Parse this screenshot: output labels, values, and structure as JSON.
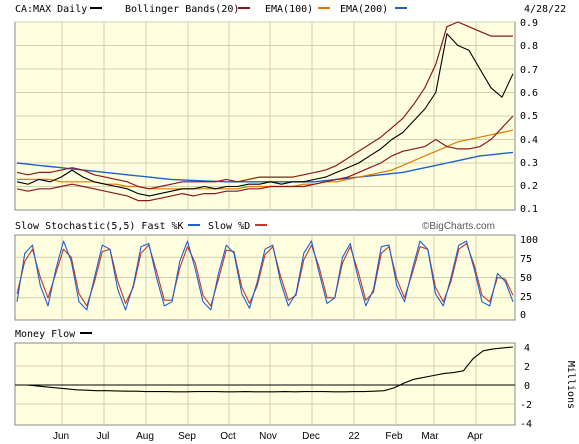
{
  "chart_data": {
    "type": "line",
    "date_label": "4/28/22",
    "credit": "©BigCharts.com",
    "x_tick_labels": [
      "Jun",
      "Jul",
      "Aug",
      "Sep",
      "Oct",
      "Nov",
      "Dec",
      "22",
      "Feb",
      "Mar",
      "Apr"
    ],
    "colors": {
      "background": "#ffffe0",
      "grid": "#cfd0b0",
      "price": "#000000",
      "bollinger": "#8b1a1a",
      "ema100": "#e07b00",
      "ema200": "#1f5fd0",
      "fast_k": "#1f5fd0",
      "slow_d": "#c0392b"
    },
    "panels": [
      {
        "name": "price",
        "legend": [
          {
            "label": "CA:MAX Daily",
            "color": "#000000"
          },
          {
            "label": "Bollinger Bands(20)",
            "color": "#8b1a1a"
          },
          {
            "label": "EMA(100)",
            "color": "#e07b00"
          },
          {
            "label": "EMA(200)",
            "color": "#1f5fd0"
          }
        ],
        "y_ticks": [
          "0.9",
          "0.8",
          "0.7",
          "0.6",
          "0.5",
          "0.4",
          "0.3",
          "0.2",
          "0.1"
        ],
        "ylim": [
          0.1,
          0.9
        ],
        "series": [
          {
            "values": [
              0.22,
              0.21,
              0.23,
              0.22,
              0.24,
              0.27,
              0.24,
              0.22,
              0.21,
              0.2,
              0.19,
              0.17,
              0.16,
              0.17,
              0.18,
              0.19,
              0.19,
              0.2,
              0.19,
              0.2,
              0.2,
              0.21,
              0.21,
              0.22,
              0.21,
              0.22,
              0.22,
              0.23,
              0.24,
              0.26,
              0.28,
              0.3,
              0.33,
              0.36,
              0.4,
              0.43,
              0.48,
              0.53,
              0.6,
              0.85,
              0.8,
              0.78,
              0.7,
              0.62,
              0.58,
              0.68
            ]
          },
          {
            "values": [
              0.26,
              0.25,
              0.26,
              0.26,
              0.27,
              0.28,
              0.27,
              0.25,
              0.24,
              0.23,
              0.22,
              0.2,
              0.19,
              0.2,
              0.21,
              0.22,
              0.22,
              0.22,
              0.22,
              0.23,
              0.22,
              0.23,
              0.24,
              0.24,
              0.24,
              0.24,
              0.25,
              0.26,
              0.27,
              0.29,
              0.32,
              0.35,
              0.38,
              0.41,
              0.45,
              0.49,
              0.55,
              0.62,
              0.72,
              0.88,
              0.9,
              0.88,
              0.86,
              0.84,
              0.84,
              0.84
            ]
          },
          {
            "values": [
              0.19,
              0.18,
              0.19,
              0.19,
              0.2,
              0.21,
              0.2,
              0.19,
              0.18,
              0.17,
              0.16,
              0.14,
              0.14,
              0.15,
              0.16,
              0.17,
              0.16,
              0.17,
              0.17,
              0.18,
              0.18,
              0.19,
              0.19,
              0.2,
              0.2,
              0.2,
              0.2,
              0.21,
              0.22,
              0.23,
              0.24,
              0.26,
              0.28,
              0.3,
              0.33,
              0.35,
              0.36,
              0.37,
              0.4,
              0.37,
              0.36,
              0.36,
              0.37,
              0.4,
              0.45,
              0.5
            ]
          },
          {
            "values": [
              0.23,
              0.23,
              0.23,
              0.23,
              0.22,
              0.22,
              0.22,
              0.22,
              0.21,
              0.21,
              0.2,
              0.2,
              0.19,
              0.19,
              0.19,
              0.19,
              0.19,
              0.19,
              0.19,
              0.19,
              0.19,
              0.2,
              0.2,
              0.2,
              0.2,
              0.2,
              0.21,
              0.21,
              0.22,
              0.22,
              0.23,
              0.24,
              0.25,
              0.26,
              0.27,
              0.29,
              0.31,
              0.33,
              0.35,
              0.37,
              0.39,
              0.4,
              0.41,
              0.42,
              0.43,
              0.44
            ]
          },
          {
            "values": [
              0.3,
              0.295,
              0.29,
              0.285,
              0.28,
              0.275,
              0.27,
              0.265,
              0.26,
              0.255,
              0.25,
              0.245,
              0.24,
              0.235,
              0.23,
              0.228,
              0.226,
              0.224,
              0.222,
              0.22,
              0.22,
              0.22,
              0.22,
              0.22,
              0.22,
              0.22,
              0.22,
              0.22,
              0.225,
              0.23,
              0.235,
              0.24,
              0.245,
              0.25,
              0.255,
              0.26,
              0.27,
              0.28,
              0.29,
              0.3,
              0.31,
              0.32,
              0.33,
              0.335,
              0.34,
              0.345
            ]
          }
        ]
      },
      {
        "name": "stochastic",
        "legend": [
          {
            "label": "Slow Stochastic(5,5) Fast %K",
            "color": "#1f5fd0"
          },
          {
            "label": "Slow %D",
            "color": "#c0392b"
          }
        ],
        "y_ticks": [
          "100",
          "75",
          "50",
          "25",
          "0"
        ],
        "ylim": [
          0,
          100
        ],
        "series": [
          {
            "values": [
              20,
              80,
              90,
              40,
              15,
              60,
              95,
              70,
              20,
              10,
              50,
              90,
              85,
              35,
              10,
              40,
              88,
              92,
              50,
              15,
              20,
              70,
              95,
              60,
              20,
              10,
              55,
              90,
              80,
              30,
              12,
              45,
              85,
              90,
              45,
              15,
              30,
              80,
              95,
              55,
              18,
              25,
              75,
              92,
              50,
              15,
              35,
              88,
              90,
              40,
              20,
              60,
              95,
              85,
              30,
              15,
              50,
              90,
              95,
              60,
              20,
              15,
              55,
              45,
              20
            ]
          },
          {
            "values": [
              30,
              70,
              85,
              50,
              25,
              55,
              85,
              75,
              30,
              15,
              45,
              82,
              85,
              45,
              18,
              38,
              80,
              90,
              58,
              22,
              22,
              62,
              88,
              68,
              28,
              15,
              48,
              84,
              82,
              38,
              18,
              40,
              78,
              88,
              52,
              22,
              28,
              72,
              90,
              62,
              25,
              25,
              68,
              88,
              58,
              22,
              32,
              80,
              88,
              48,
              25,
              55,
              88,
              85,
              38,
              20,
              45,
              85,
              92,
              65,
              28,
              20,
              50,
              48,
              28
            ]
          }
        ]
      },
      {
        "name": "money_flow",
        "legend": [
          {
            "label": "Money Flow",
            "color": "#000000"
          }
        ],
        "y_ticks": [
          "4",
          "2",
          "0",
          "-2",
          "-4"
        ],
        "y_axis_label": "Millions",
        "ylim": [
          -4,
          4
        ],
        "series": [
          {
            "values": [
              0,
              0.0,
              -0.1,
              -0.2,
              -0.3,
              -0.4,
              -0.5,
              -0.55,
              -0.6,
              -0.6,
              -0.62,
              -0.65,
              -0.65,
              -0.7,
              -0.7,
              -0.7,
              -0.72,
              -0.72,
              -0.7,
              -0.7,
              -0.7,
              -0.72,
              -0.72,
              -0.7,
              -0.72,
              -0.72,
              -0.72,
              -0.7,
              -0.72,
              -0.7,
              -0.7,
              -0.7,
              -0.72,
              -0.72,
              -0.7,
              -0.7,
              -0.65,
              -0.6,
              -0.3,
              0.2,
              0.6,
              0.8,
              1.0,
              1.2,
              1.3,
              1.5,
              2.8,
              3.6,
              3.8,
              3.9,
              4.0
            ]
          }
        ]
      }
    ]
  }
}
